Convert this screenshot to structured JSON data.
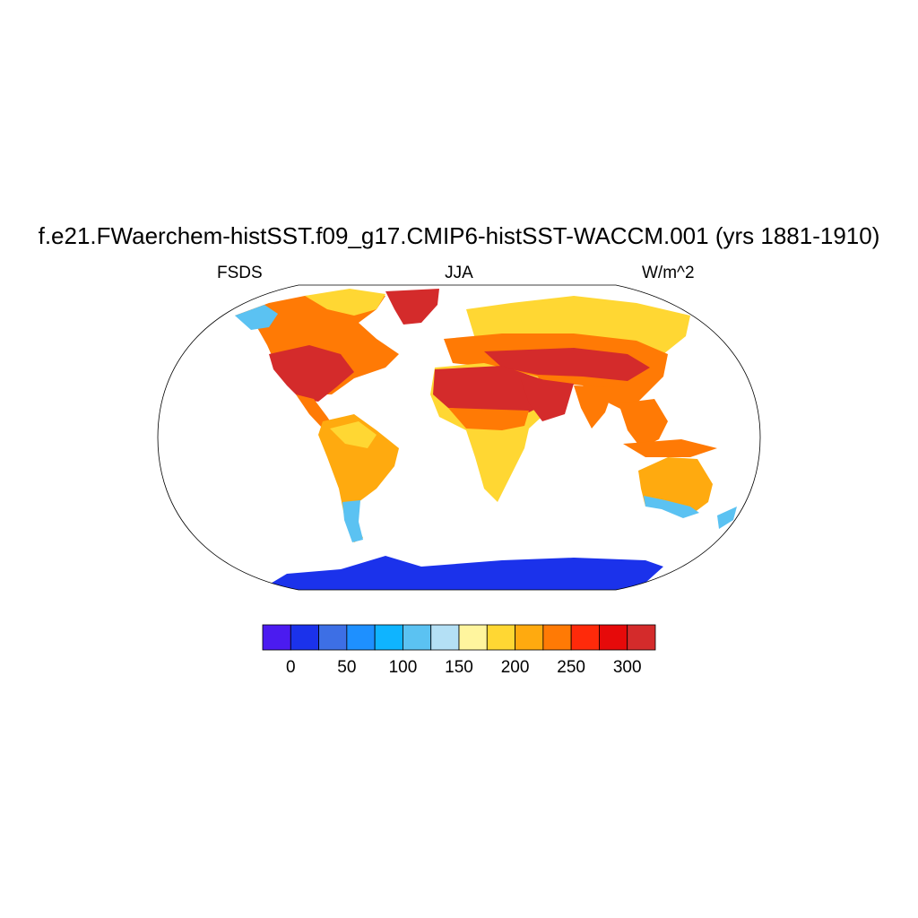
{
  "title": "f.e21.FWaerchem-histSST.f09_g17.CMIP6-histSST-WACCM.001 (yrs 1881-1910)",
  "variable": "FSDS",
  "season": "JJA",
  "units": "W/m^2",
  "colorbar": {
    "colors": [
      "#4B1BF0",
      "#1B32EB",
      "#3D6FE5",
      "#1E90FF",
      "#0FB4FF",
      "#5BC2F2",
      "#B4E0F5",
      "#FFF59E",
      "#FFD733",
      "#FFAA0F",
      "#FF7A05",
      "#FF2A0A",
      "#E60A0A",
      "#D42B2B"
    ],
    "tick_labels": [
      "0",
      "50",
      "100",
      "150",
      "200",
      "250",
      "300"
    ]
  },
  "map": {
    "projection": "Robinson",
    "ocean_color": "#ffffff",
    "coastline_color": "#000000"
  }
}
